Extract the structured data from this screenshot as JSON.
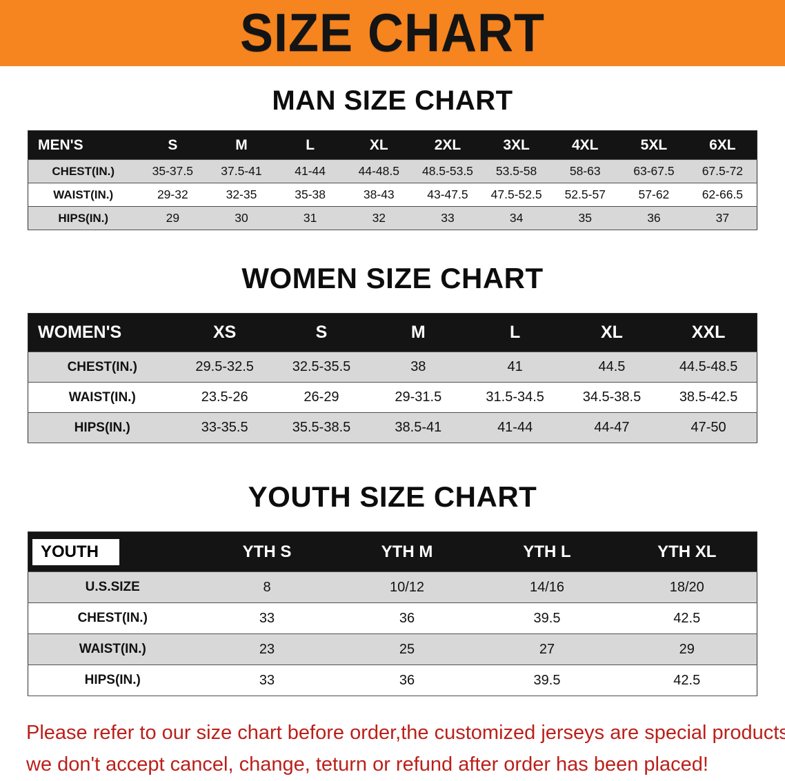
{
  "banner": {
    "title": "SIZE CHART"
  },
  "colors": {
    "banner_bg": "#f6841f",
    "banner_text": "#141414",
    "table_header_bg": "#141414",
    "table_header_text": "#ffffff",
    "row_shade": "#d8d8d8",
    "disclaimer_text": "#bb201a"
  },
  "sections": [
    {
      "id": "men",
      "heading": "MAN SIZE CHART",
      "table": {
        "header": [
          "MEN'S",
          "S",
          "M",
          "L",
          "XL",
          "2XL",
          "3XL",
          "4XL",
          "5XL",
          "6XL"
        ],
        "rows": [
          [
            "CHEST(IN.)",
            "35-37.5",
            "37.5-41",
            "41-44",
            "44-48.5",
            "48.5-53.5",
            "53.5-58",
            "58-63",
            "63-67.5",
            "67.5-72"
          ],
          [
            "WAIST(IN.)",
            "29-32",
            "32-35",
            "35-38",
            "38-43",
            "43-47.5",
            "47.5-52.5",
            "52.5-57",
            "57-62",
            "62-66.5"
          ],
          [
            "HIPS(IN.)",
            "29",
            "30",
            "31",
            "32",
            "33",
            "34",
            "35",
            "36",
            "37"
          ]
        ]
      }
    },
    {
      "id": "women",
      "heading": "WOMEN SIZE CHART",
      "table": {
        "header": [
          "WOMEN'S",
          "XS",
          "S",
          "M",
          "L",
          "XL",
          "XXL"
        ],
        "rows": [
          [
            "CHEST(IN.)",
            "29.5-32.5",
            "32.5-35.5",
            "38",
            "41",
            "44.5",
            "44.5-48.5"
          ],
          [
            "WAIST(IN.)",
            "23.5-26",
            "26-29",
            "29-31.5",
            "31.5-34.5",
            "34.5-38.5",
            "38.5-42.5"
          ],
          [
            "HIPS(IN.)",
            "33-35.5",
            "35.5-38.5",
            "38.5-41",
            "41-44",
            "44-47",
            "47-50"
          ]
        ]
      }
    },
    {
      "id": "youth",
      "heading": "YOUTH SIZE CHART",
      "table": {
        "header": [
          "YOUTH",
          "YTH S",
          "YTH M",
          "YTH L",
          "YTH XL"
        ],
        "rows": [
          [
            "U.S.SIZE",
            "8",
            "10/12",
            "14/16",
            "18/20"
          ],
          [
            "CHEST(IN.)",
            "33",
            "36",
            "39.5",
            "42.5"
          ],
          [
            "WAIST(IN.)",
            "23",
            "25",
            "27",
            "29"
          ],
          [
            "HIPS(IN.)",
            "33",
            "36",
            "39.5",
            "42.5"
          ]
        ]
      }
    }
  ],
  "disclaimer": {
    "line1": "Please refer to our size chart before order,the customized jerseys are special products,",
    "line2": "we don't accept cancel, change, teturn or refund after order has been placed!"
  }
}
